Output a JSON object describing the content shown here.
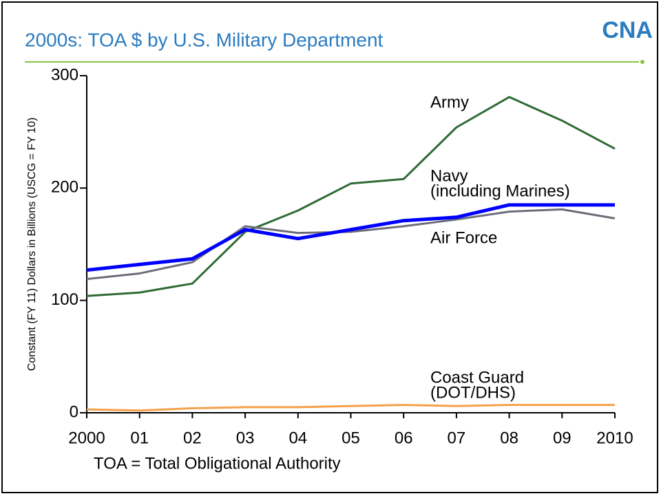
{
  "logo": "CNA",
  "chart_data": {
    "type": "line",
    "title": "2000s: TOA $ by U.S. Military Department",
    "ylabel": "Constant (FY 11) Dollars in Billions (USCG = FY 10)",
    "note": "TOA = Total Obligational Authority",
    "categories": [
      "2000",
      "01",
      "02",
      "03",
      "04",
      "05",
      "06",
      "07",
      "08",
      "09",
      "2010"
    ],
    "ylim": [
      0,
      300
    ],
    "yticks": [
      0,
      100,
      200,
      300
    ],
    "series": [
      {
        "name": "Army",
        "color": "#2e6b35",
        "width": 3,
        "values": [
          104,
          107,
          115,
          161,
          180,
          204,
          208,
          254,
          281,
          260,
          235
        ]
      },
      {
        "name": "Air Force",
        "color": "#6d6d7a",
        "width": 3,
        "values": [
          119,
          124,
          134,
          166,
          160,
          161,
          166,
          172,
          179,
          181,
          173
        ]
      },
      {
        "name": "Navy",
        "subname": "(including Marines)",
        "color": "#0000ff",
        "width": 5,
        "values": [
          127,
          132,
          137,
          163,
          155,
          163,
          171,
          174,
          185,
          185,
          185
        ]
      },
      {
        "name": "Coast Guard",
        "subname": "(DOT/DHS)",
        "color": "#f5a04a",
        "width": 3,
        "values": [
          3,
          2,
          4,
          5,
          5,
          6,
          7,
          6,
          7,
          7,
          7
        ]
      }
    ]
  }
}
